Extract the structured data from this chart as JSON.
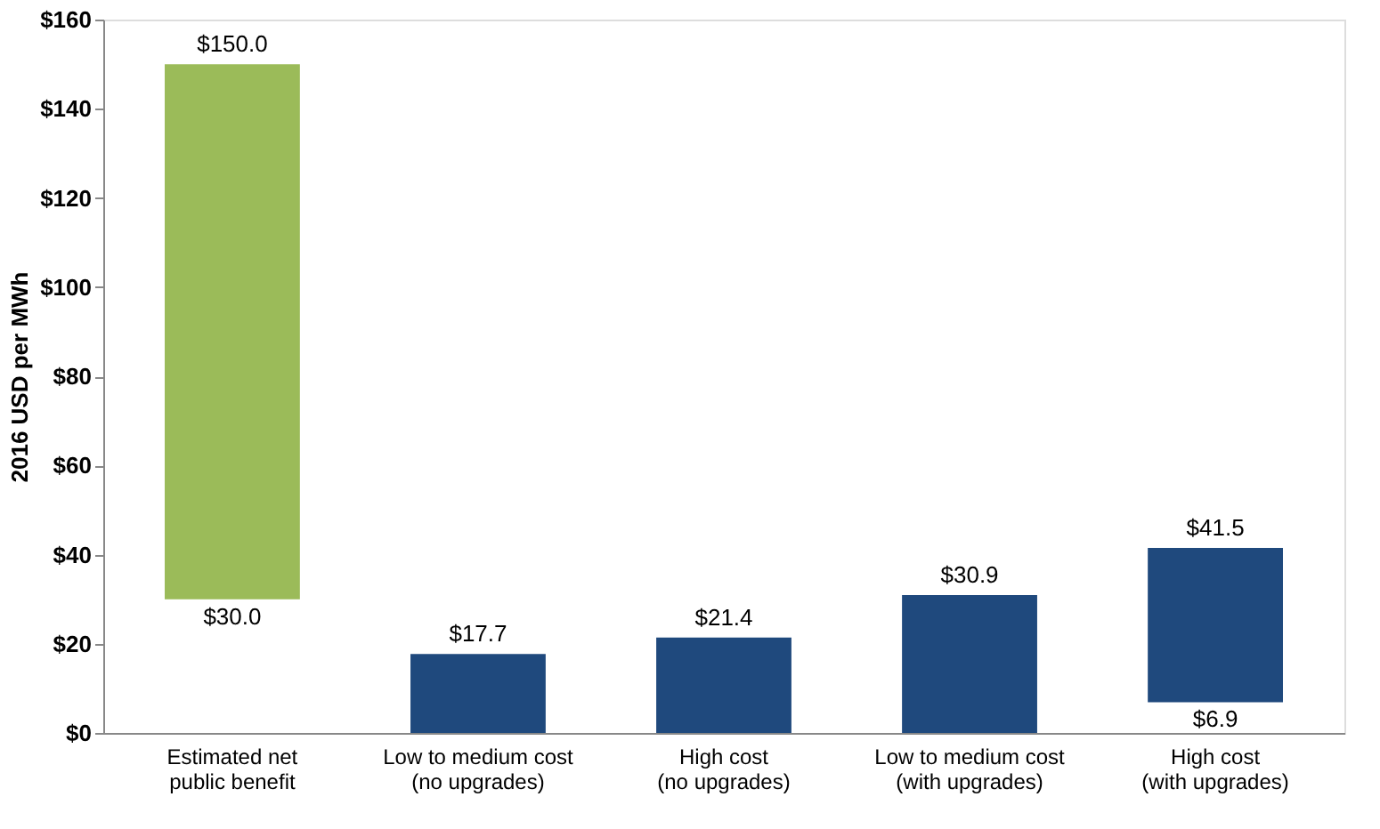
{
  "chart_data": {
    "type": "bar",
    "ylabel": "2016 USD per MWh",
    "categories": [
      "Estimated net\npublic benefit",
      "Low to medium cost\n(no upgrades)",
      "High cost\n(no upgrades)",
      "Low to medium cost\n(with upgrades)",
      "High cost\n(with upgrades)"
    ],
    "base": [
      30.0,
      0,
      0,
      0,
      6.9
    ],
    "values": [
      120.0,
      17.7,
      21.4,
      30.9,
      34.6
    ],
    "colors": [
      "#9bbb59",
      "#1f497d",
      "#1f497d",
      "#1f497d",
      "#1f497d"
    ],
    "value_labels": [
      "$150.0",
      "$17.7",
      "$21.4",
      "$30.9",
      "$41.5"
    ],
    "annotations": [
      {
        "text": "$30.0",
        "x": "Estimated net\npublic benefit",
        "y": 30.0
      },
      {
        "text": "$6.9",
        "x": "High cost\n(with upgrades)",
        "y": 6.9
      }
    ],
    "ylim": [
      0,
      160
    ],
    "yticks": [
      {
        "value": 0,
        "label": "$0"
      },
      {
        "value": 20,
        "label": "$20"
      },
      {
        "value": 40,
        "label": "$40"
      },
      {
        "value": 60,
        "label": "$60"
      },
      {
        "value": 80,
        "label": "$80"
      },
      {
        "value": 100,
        "label": "$100"
      },
      {
        "value": 120,
        "label": "$120"
      },
      {
        "value": 140,
        "label": "$140"
      },
      {
        "value": 160,
        "label": "$160"
      }
    ],
    "grid": false
  }
}
